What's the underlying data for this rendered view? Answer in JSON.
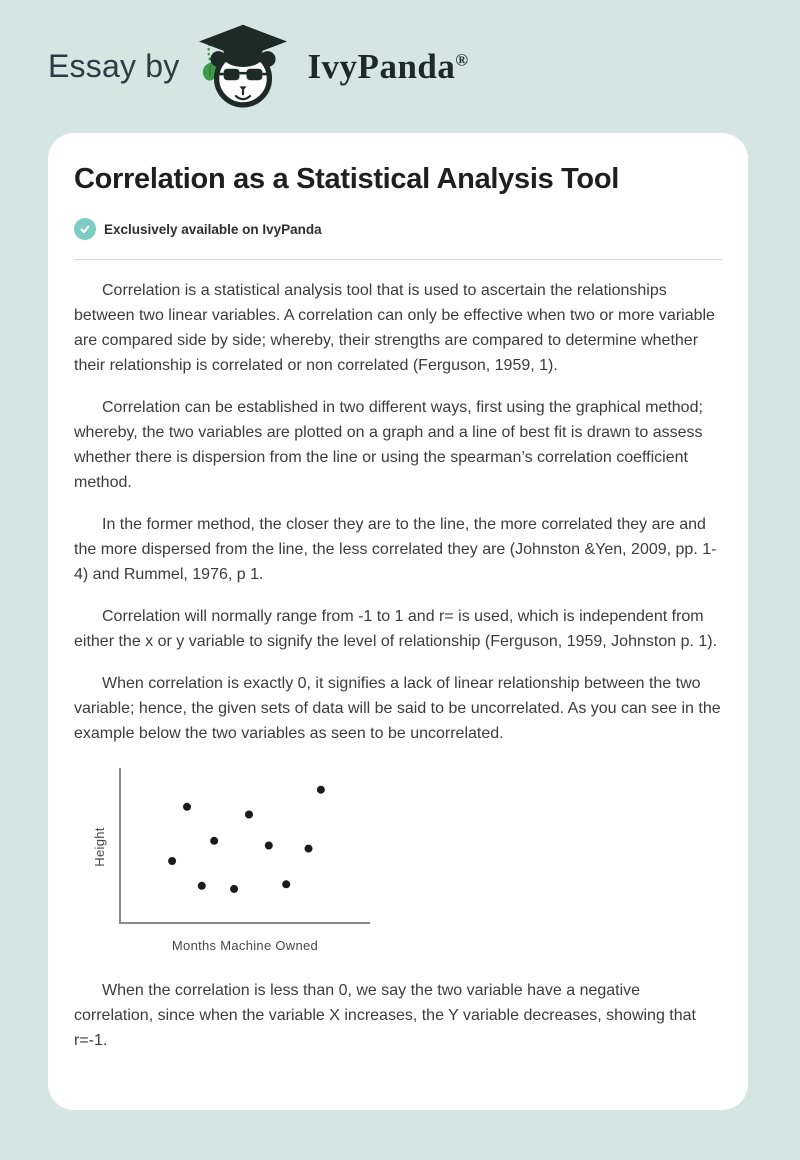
{
  "page": {
    "background_color": "#d5e6e2",
    "card_background": "#ffffff"
  },
  "header": {
    "essay_by_label": "Essay by",
    "brand_name": "IvyPanda",
    "registered_mark": "®",
    "logo_icon": "panda-graduate-icon",
    "logo_dark_color": "#1e2a26",
    "logo_leaf_color": "#3f9b4c"
  },
  "article": {
    "title": "Correlation as a Statistical Analysis Tool",
    "badge": {
      "icon": "check-icon",
      "icon_color": "#7ecdc5",
      "label": "Exclusively available on IvyPanda"
    },
    "paragraphs": [
      "Correlation is a statistical analysis tool that is used to ascertain the relationships between two linear variables. A correlation can only be effective when two or more variable are compared side by side; whereby, their strengths are compared to determine whether their relationship is correlated or non correlated (Ferguson, 1959, 1).",
      "Correlation can be established in two different ways, first using the graphical method; whereby, the two variables are plotted on a graph and a line of best fit is drawn to assess whether there is dispersion from the line or using the spearman’s correlation coefficient method.",
      "In the former method, the closer they are to the line, the more correlated they are and the more dispersed from the line, the less correlated they are (Johnston &Yen, 2009, pp. 1-4) and Rummel, 1976, p 1.",
      "Correlation will normally range from -1 to 1 and r= is used, which is independent from either the x or y variable to signify the level of relationship (Ferguson, 1959, Johnston p. 1).",
      "When correlation is exactly 0, it signifies a lack of linear relationship between the two variable; hence, the given sets of data will be said to be uncorrelated. As you can see in the example below the two variables as seen to be uncorrelated.",
      "When the correlation is less than 0, we say the two variable have a negative correlation, since when the variable X increases, the Y variable decreases, showing that r=-1."
    ]
  },
  "chart_data": {
    "type": "scatter",
    "title": "",
    "xlabel": "Months Machine Owned",
    "ylabel": "Height",
    "points": [
      [
        2.1,
        4.0
      ],
      [
        2.7,
        7.5
      ],
      [
        3.3,
        2.4
      ],
      [
        3.8,
        5.3
      ],
      [
        4.6,
        2.2
      ],
      [
        5.2,
        7.0
      ],
      [
        6.0,
        5.0
      ],
      [
        6.7,
        2.5
      ],
      [
        7.6,
        4.8
      ],
      [
        8.1,
        8.6
      ]
    ],
    "xlim": [
      0,
      10
    ],
    "ylim": [
      0,
      10
    ],
    "grid": false,
    "legend": "none",
    "axis_ticks": "none",
    "point_color": "#1b1b1b",
    "point_radius": 4,
    "axis_color": "#8a8a8a"
  }
}
